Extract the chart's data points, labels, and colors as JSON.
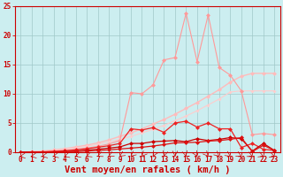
{
  "x": [
    0,
    1,
    2,
    3,
    4,
    5,
    6,
    7,
    8,
    9,
    10,
    11,
    12,
    13,
    14,
    15,
    16,
    17,
    18,
    19,
    20,
    21,
    22,
    23
  ],
  "line_pale1": [
    0.0,
    0.1,
    0.2,
    0.4,
    0.6,
    0.9,
    1.2,
    1.6,
    2.1,
    2.7,
    3.3,
    4.0,
    4.8,
    5.6,
    6.5,
    7.5,
    8.5,
    9.6,
    10.7,
    12.0,
    13.0,
    13.5,
    13.5,
    13.5
  ],
  "line_pale2": [
    0.0,
    0.05,
    0.15,
    0.3,
    0.5,
    0.7,
    1.0,
    1.35,
    1.75,
    2.2,
    2.7,
    3.3,
    3.9,
    4.6,
    5.4,
    6.2,
    7.1,
    8.1,
    9.1,
    10.3,
    10.5,
    10.5,
    10.5,
    10.5
  ],
  "line_spiky": [
    0.0,
    0.05,
    0.1,
    0.2,
    0.3,
    0.5,
    0.7,
    1.0,
    1.4,
    2.0,
    10.2,
    10.0,
    11.5,
    15.8,
    16.2,
    23.8,
    15.5,
    23.5,
    14.5,
    13.2,
    10.5,
    3.0,
    3.2,
    3.0
  ],
  "line_med": [
    0.0,
    0.02,
    0.05,
    0.15,
    0.25,
    0.4,
    0.6,
    0.85,
    1.1,
    1.5,
    4.0,
    3.8,
    4.2,
    3.4,
    5.0,
    5.3,
    4.3,
    5.0,
    4.0,
    4.0,
    0.8,
    1.5,
    0.5,
    0.3
  ],
  "line_dark1": [
    0.0,
    0.0,
    0.02,
    0.05,
    0.1,
    0.2,
    0.35,
    0.5,
    0.7,
    0.9,
    1.5,
    1.5,
    1.8,
    1.9,
    2.0,
    1.8,
    2.3,
    2.0,
    2.2,
    2.5,
    2.3,
    0.2,
    1.5,
    0.3
  ],
  "line_dark2": [
    0.0,
    0.0,
    0.01,
    0.03,
    0.07,
    0.12,
    0.2,
    0.3,
    0.4,
    0.55,
    0.7,
    0.85,
    1.05,
    1.3,
    1.6,
    1.65,
    1.7,
    1.9,
    2.0,
    2.2,
    2.5,
    0.1,
    1.2,
    0.3
  ],
  "bg_color": "#cceef0",
  "grid_color": "#a0c8c8",
  "xlabel": "Vent moyen/en rafales ( km/h )",
  "ylim": [
    0,
    25
  ],
  "xlim": [
    -0.5,
    23.5
  ],
  "yticks": [
    0,
    5,
    10,
    15,
    20,
    25
  ],
  "xticks": [
    0,
    1,
    2,
    3,
    4,
    5,
    6,
    7,
    8,
    9,
    10,
    11,
    12,
    13,
    14,
    15,
    16,
    17,
    18,
    19,
    20,
    21,
    22,
    23
  ],
  "colors": {
    "pale_pink1": "#ffbbbb",
    "pale_pink2": "#ffcccc",
    "spiky_pink": "#ff9999",
    "med_red": "#ee2222",
    "dark_red1": "#cc0000",
    "dark_red2": "#dd1111"
  },
  "tick_color": "#cc0000",
  "tick_fontsize": 5.5,
  "xlabel_fontsize": 7.5,
  "marker": "D",
  "markersize": 2.5
}
